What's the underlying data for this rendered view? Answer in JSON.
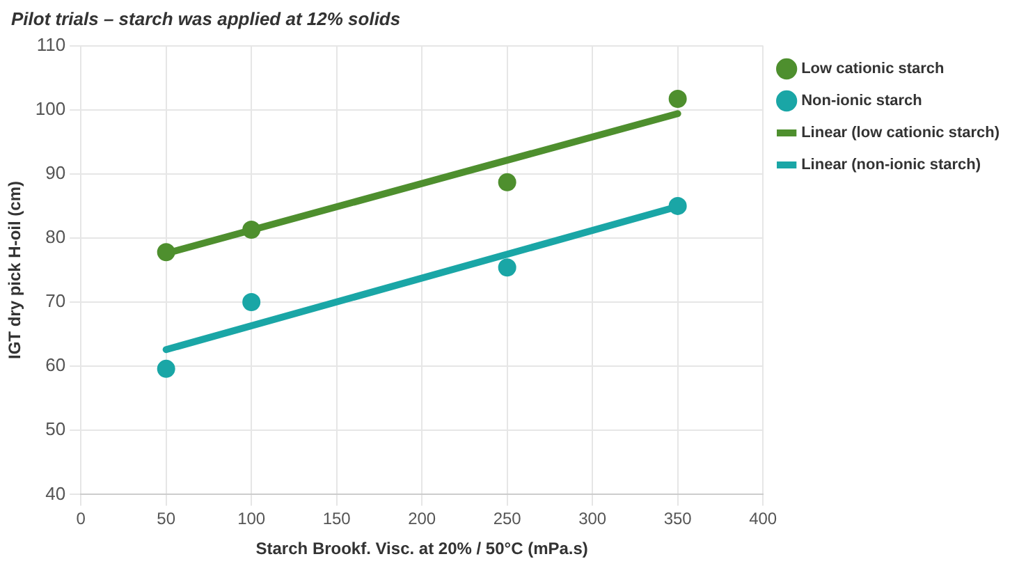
{
  "chart_data": {
    "type": "scatter",
    "title": "Pilot trials – starch was applied at 12% solids",
    "xlabel": "Starch Brookf. Visc. at 20% / 50°C (mPa.s)",
    "ylabel": "IGT dry pick H-oil (cm)",
    "xlim": [
      0,
      400
    ],
    "xticks": [
      0,
      50,
      100,
      150,
      200,
      250,
      300,
      350,
      400
    ],
    "ylim": [
      40,
      110
    ],
    "yticks": [
      40,
      50,
      60,
      70,
      80,
      90,
      100,
      110
    ],
    "grid": true,
    "legend": "right",
    "marker": "circle",
    "series": [
      {
        "name": "Low cationic starch",
        "color": "#4e8f2e",
        "x": [
          50,
          100,
          250,
          350
        ],
        "values": [
          77.8,
          81.3,
          88.7,
          101.7
        ]
      },
      {
        "name": "Non-ionic starch",
        "color": "#1aa6a6",
        "x": [
          50,
          100,
          250,
          350
        ],
        "values": [
          59.6,
          70,
          75.4,
          85
        ]
      },
      {
        "name": "Linear (low cationic starch)",
        "type": "line",
        "color": "#4e8f2e",
        "x": [
          50,
          350
        ],
        "values": [
          77.6,
          99.4
        ],
        "line_style": "solid",
        "marker": "none"
      },
      {
        "name": "Linear (non-ionic starch)",
        "type": "line",
        "color": "#1aa6a6",
        "x": [
          50,
          350
        ],
        "values": [
          62.6,
          84.9
        ],
        "line_style": "solid",
        "marker": "none"
      }
    ]
  }
}
